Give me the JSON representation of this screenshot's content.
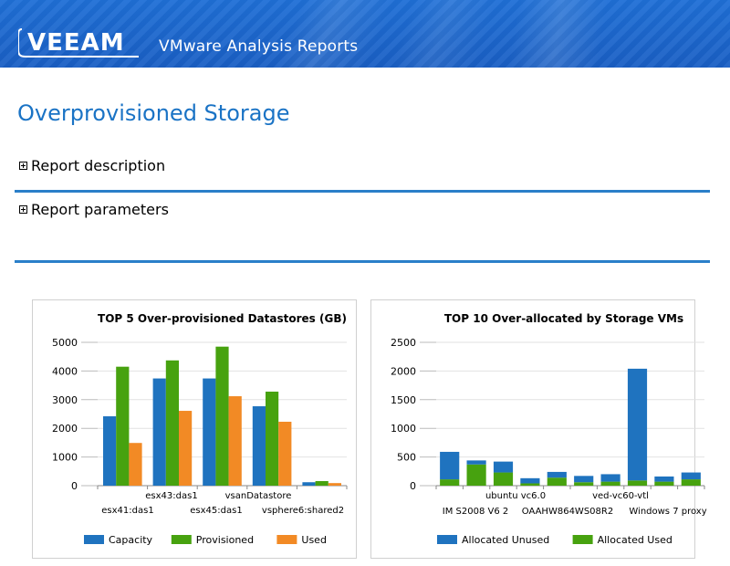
{
  "header": {
    "logo_text": "VEEAM",
    "app_title": "VMware Analysis Reports"
  },
  "page": {
    "title": "Overprovisioned Storage"
  },
  "sections": {
    "description_label": "Report description",
    "parameters_label": "Report parameters"
  },
  "colors": {
    "accent": "#1a73c5",
    "capacity": "#1f73bf",
    "provisioned": "#47a20f",
    "used": "#f28a25",
    "divider": "#2a7fc9"
  },
  "chart_data": [
    {
      "type": "bar",
      "title": "TOP 5 Over-provisioned Datastores (GB)",
      "categories": [
        "esx41:das1",
        "esx43:das1",
        "esx45:das1",
        "vsanDatastore",
        "vsphere6:shared2"
      ],
      "series": [
        {
          "name": "Capacity",
          "color": "#1f73bf",
          "values": [
            2420,
            3740,
            3740,
            2770,
            120
          ]
        },
        {
          "name": "Provisioned",
          "color": "#47a20f",
          "values": [
            4150,
            4370,
            4850,
            3280,
            160
          ]
        },
        {
          "name": "Used",
          "color": "#f28a25",
          "values": [
            1490,
            2610,
            3120,
            2230,
            90
          ]
        }
      ],
      "yticks": [
        0,
        1000,
        2000,
        3000,
        4000,
        5000
      ],
      "ylim": [
        0,
        5000
      ],
      "legend": "bottom",
      "grid": true
    },
    {
      "type": "bar",
      "stacked": true,
      "title": "TOP 10 Over-allocated by Storage VMs",
      "categories": [
        "IM S2008 V6 2",
        "",
        "ubuntu vc6.0",
        "",
        "OAAHW864WS08R2",
        "",
        "ved-vc60-vtl",
        "",
        "Windows 7 proxy",
        ""
      ],
      "series": [
        {
          "name": "Allocated Unused",
          "color": "#1f73bf",
          "values": [
            480,
            70,
            190,
            90,
            100,
            110,
            130,
            1950,
            90,
            120
          ]
        },
        {
          "name": "Allocated Used",
          "color": "#47a20f",
          "values": [
            110,
            370,
            230,
            40,
            140,
            60,
            70,
            90,
            70,
            110
          ]
        }
      ],
      "yticks": [
        0,
        500,
        1000,
        1500,
        2000,
        2500
      ],
      "ylim": [
        0,
        2500
      ],
      "legend": "bottom",
      "grid": true
    }
  ]
}
